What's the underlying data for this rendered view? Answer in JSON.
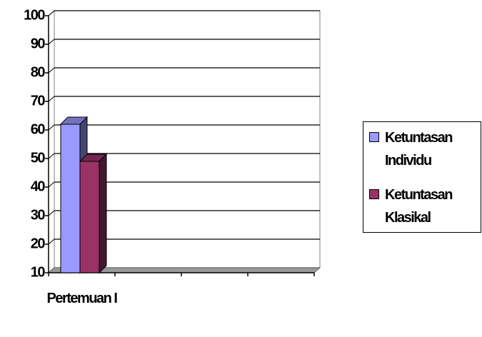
{
  "chart_data": {
    "type": "bar3d",
    "categories": [
      "Pertemuan I",
      null,
      null,
      null
    ],
    "series": [
      {
        "name": "Ketuntasan Individu",
        "color": "#9999ff",
        "values": [
          62,
          null,
          null,
          null
        ]
      },
      {
        "name": "Ketuntasan Klasikal",
        "color": "#993366",
        "values": [
          49,
          null,
          null,
          null
        ]
      }
    ],
    "ylim": [
      10,
      100
    ],
    "yticks": [
      10,
      20,
      30,
      40,
      50,
      60,
      70,
      80,
      90,
      100
    ],
    "grid": true,
    "legend": "right"
  }
}
